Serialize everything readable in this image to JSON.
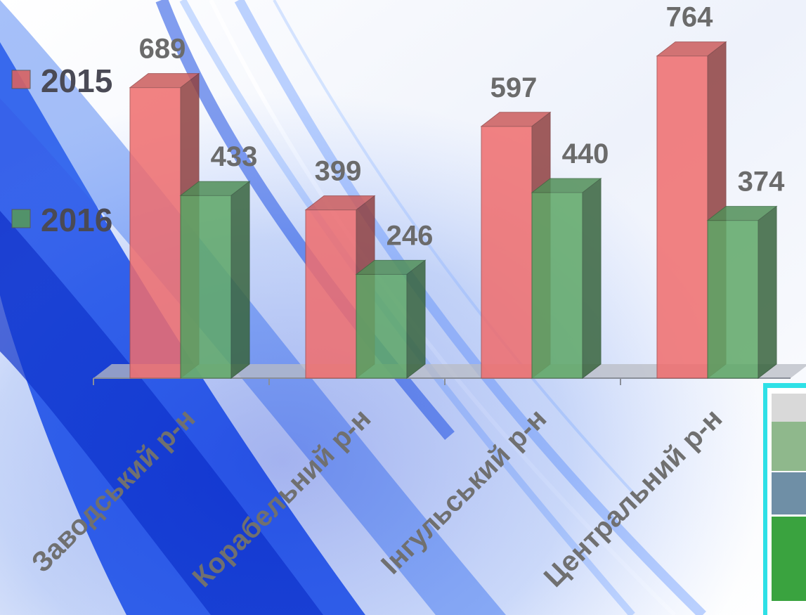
{
  "chart_data": {
    "type": "bar",
    "categories": [
      "Заводський р-н",
      "Корабельний р-н",
      "Інгульський р-н",
      "Центральний р-н"
    ],
    "series": [
      {
        "name": "2015",
        "values": [
          689,
          399,
          597,
          764
        ],
        "color": "#f06d6d"
      },
      {
        "name": "2016",
        "values": [
          433,
          246,
          440,
          374
        ],
        "color": "#5fa867"
      }
    ],
    "ylim": [
      0,
      800
    ],
    "grid": false,
    "legend": "left",
    "bar_style": "3d",
    "value_labels": true
  }
}
